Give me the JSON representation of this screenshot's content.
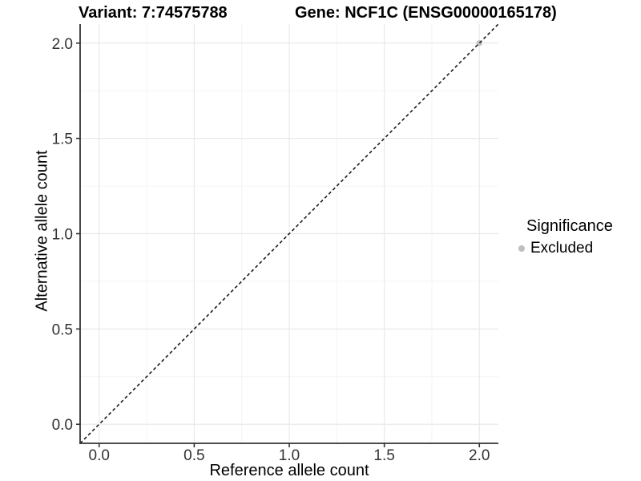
{
  "header": {
    "variant_title": "Variant: 7:74575788",
    "gene_title": "Gene: NCF1C (ENSG00000165178)"
  },
  "legend": {
    "title": "Significance",
    "items": [
      {
        "label": "Excluded",
        "color": "#bebebe",
        "marker": "circle"
      }
    ]
  },
  "colors": {
    "grid_major": "#e9e9e9",
    "grid_minor": "#f4f4f4",
    "axis": "#333333",
    "text": "#000000"
  },
  "chart_data": {
    "type": "scatter",
    "title": "Variant: 7:74575788  /  Gene: NCF1C (ENSG00000165178)",
    "xlabel": "Reference allele count",
    "ylabel": "Alternative allele count",
    "xlim": [
      -0.1,
      2.1
    ],
    "ylim": [
      -0.1,
      2.1
    ],
    "x_ticks": {
      "values": [
        0,
        0.5,
        1,
        1.5,
        2
      ],
      "labels": [
        "0.0",
        "0.5",
        "1.0",
        "1.5",
        "2.0"
      ]
    },
    "y_ticks": {
      "values": [
        0,
        0.5,
        1,
        1.5,
        2
      ],
      "labels": [
        "0.0",
        "0.5",
        "1.0",
        "1.5",
        "2.0"
      ]
    },
    "minor_grid": [
      0.25,
      0.75,
      1.25,
      1.75
    ],
    "grid": "major+minor",
    "legend_position": "right-center",
    "series": [
      {
        "name": "Excluded",
        "color": "#bebebe",
        "marker": "circle",
        "points": [
          {
            "x": 2.0,
            "y": 2.0
          }
        ]
      }
    ],
    "reference_line": {
      "slope": 1,
      "intercept": 0,
      "style": "dashed",
      "color": "#1a1a1a"
    }
  }
}
